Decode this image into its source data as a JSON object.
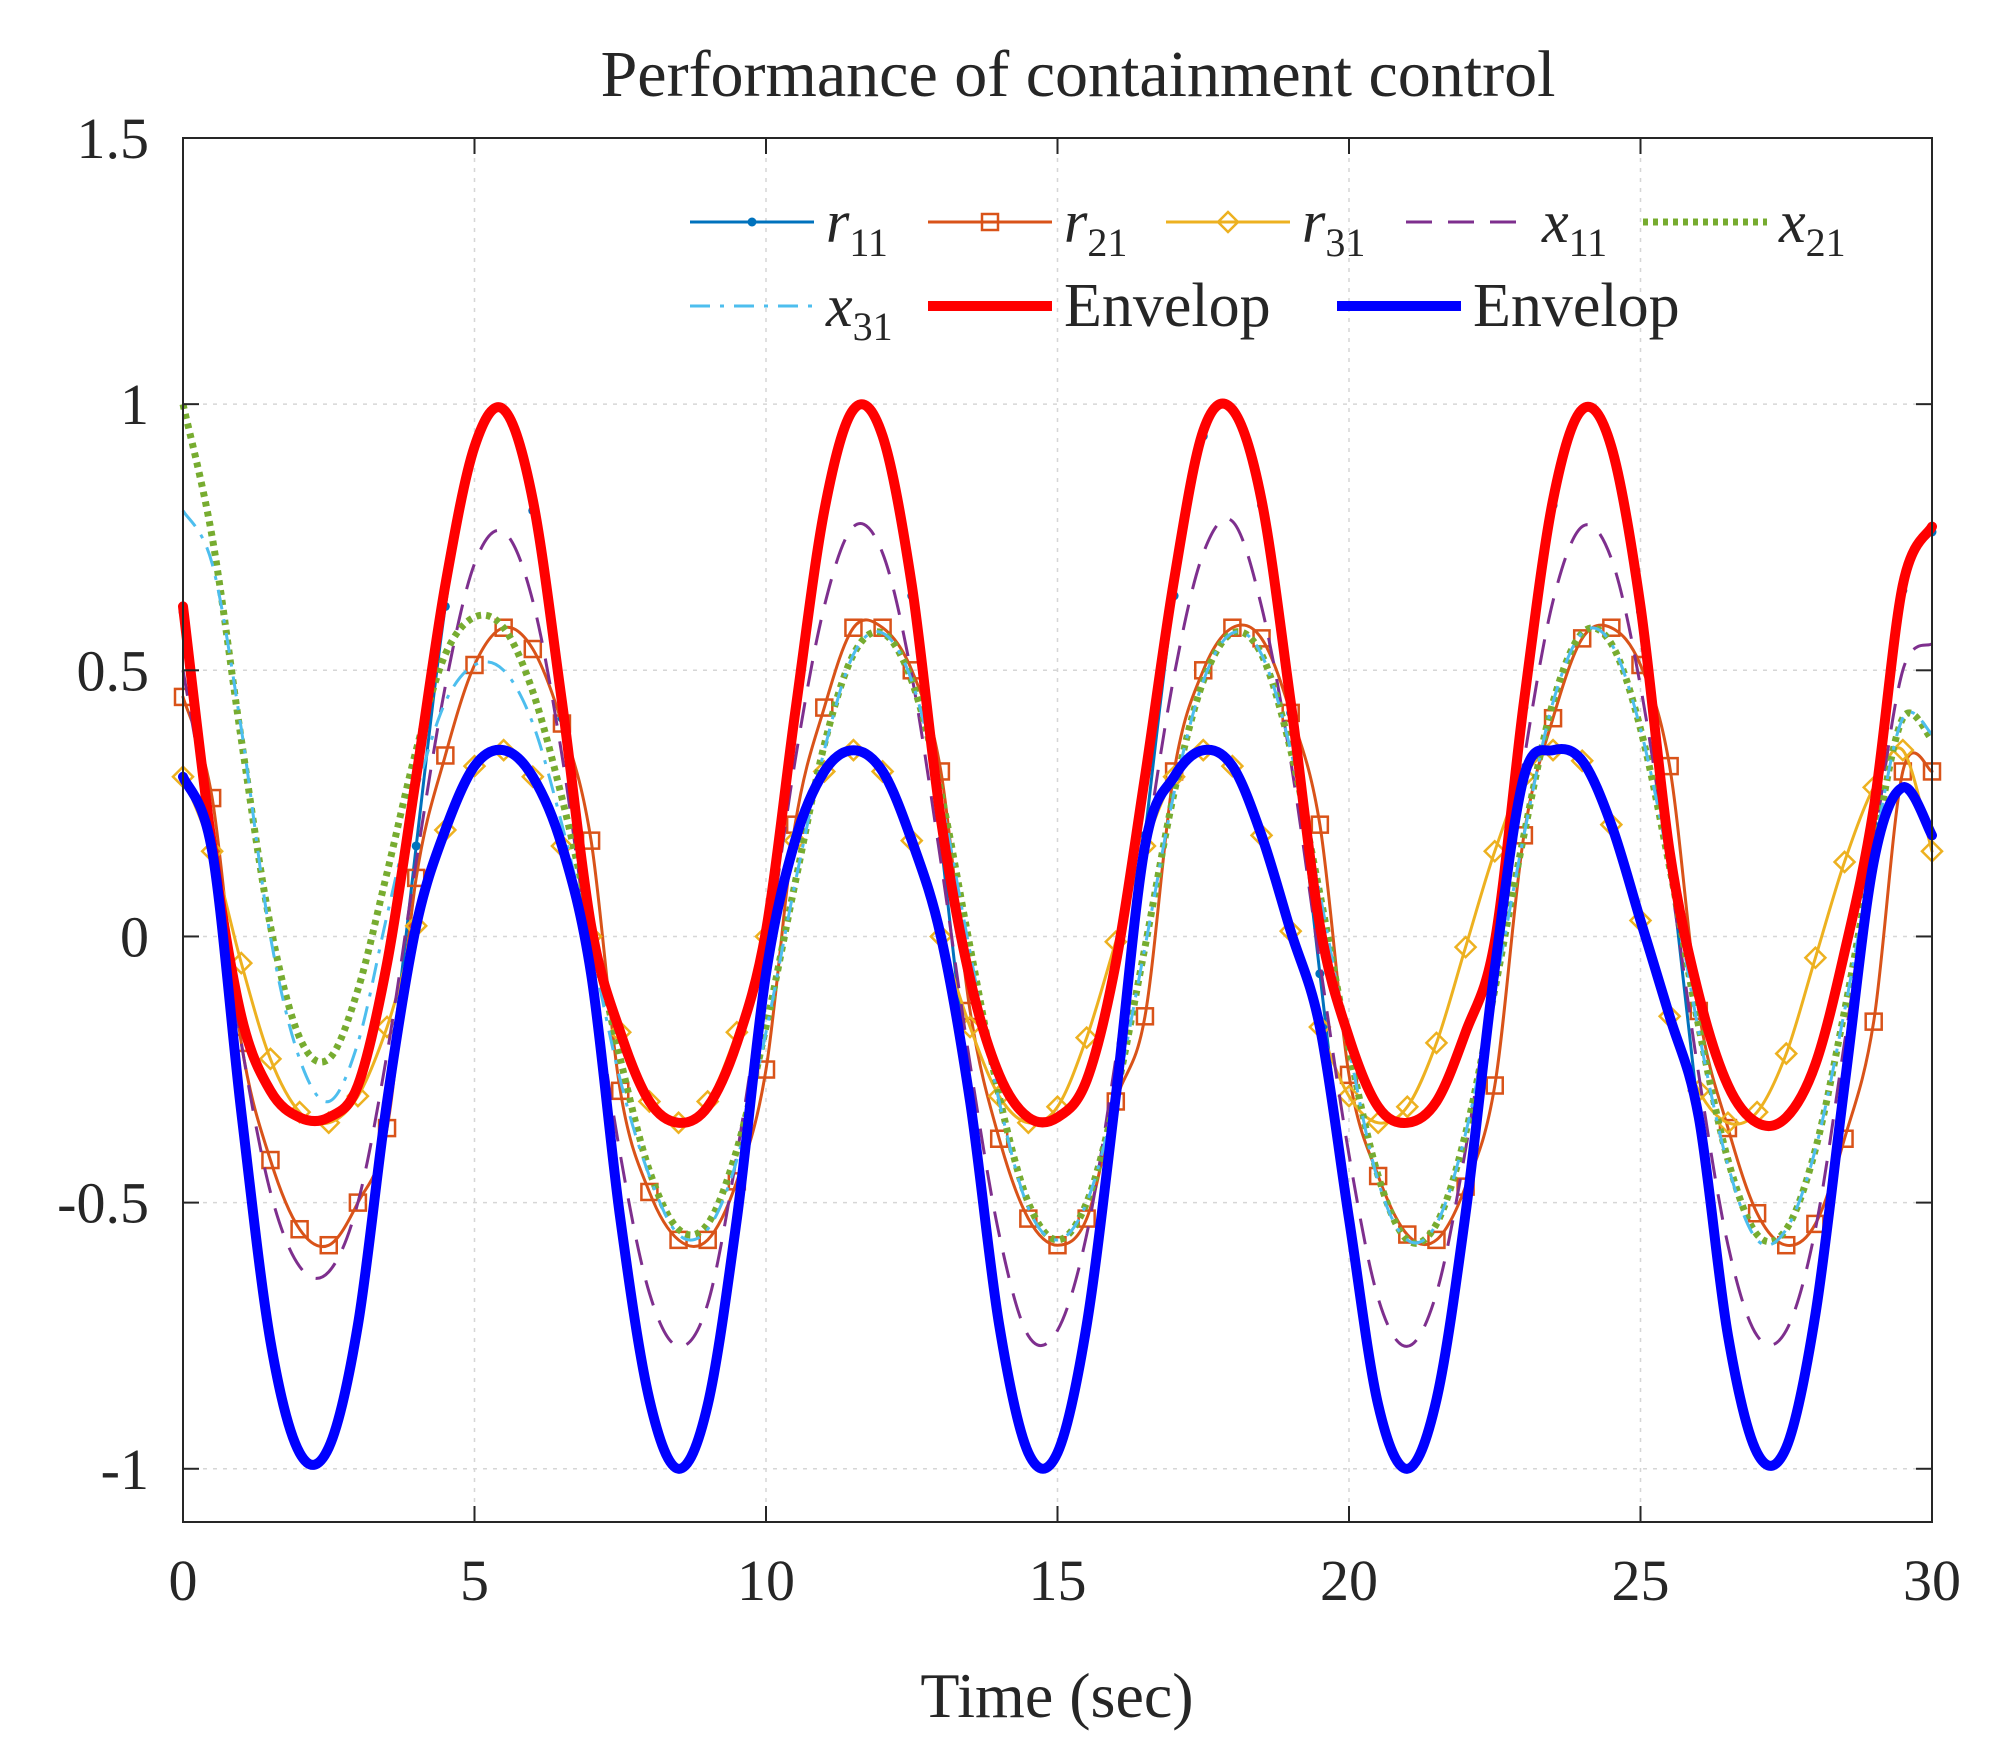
{
  "chart_data": {
    "type": "line",
    "title": "Performance of containment control",
    "xlabel": "Time (sec)",
    "ylabel": "",
    "xlim": [
      0,
      30
    ],
    "ylim": [
      -1.1,
      1.5
    ],
    "xticks": [
      0,
      5,
      10,
      15,
      20,
      25,
      30
    ],
    "xtick_labels": [
      "0",
      "5",
      "10",
      "15",
      "20",
      "25",
      "30"
    ],
    "yticks": [
      -1,
      -0.5,
      0,
      0.5,
      1,
      1.5
    ],
    "ytick_labels": [
      "-1",
      "-0.5",
      "0",
      "0.5",
      "1",
      "1.5"
    ],
    "grid": true,
    "legend_position": "top-right",
    "series": [
      {
        "name": "r_11",
        "base": "r",
        "sub": "11",
        "color": "#0072BD",
        "style": "solid",
        "width": 3,
        "marker": "dot",
        "x": [
          0,
          0.5,
          1,
          1.5,
          2,
          2.5,
          3,
          3.5,
          4,
          4.5,
          5,
          5.5,
          6,
          6.5,
          7,
          7.5,
          8,
          8.5,
          9,
          9.5,
          10,
          10.5,
          11,
          11.5,
          12,
          12.5,
          13,
          13.5,
          14,
          14.5,
          15,
          15.5,
          16,
          16.5,
          17,
          17.5,
          18,
          18.5,
          19,
          19.5,
          20,
          20.5,
          21,
          21.5,
          22,
          22.5,
          23,
          23.5,
          24,
          24.5,
          25,
          25.5,
          26,
          26.5,
          27,
          27.5,
          28,
          28.5,
          29,
          29.5,
          30
        ],
        "y": [
          0.61,
          0.17,
          -0.33,
          -0.76,
          -0.97,
          -0.96,
          -0.73,
          -0.31,
          0.17,
          0.62,
          0.92,
          0.99,
          0.8,
          0.41,
          -0.07,
          -0.53,
          -0.87,
          -1.0,
          -0.88,
          -0.53,
          -0.07,
          0.42,
          0.8,
          0.99,
          0.94,
          0.64,
          0.18,
          -0.31,
          -0.73,
          -0.97,
          -0.97,
          -0.73,
          -0.3,
          0.19,
          0.64,
          0.94,
          0.99,
          0.81,
          0.42,
          -0.07,
          -0.53,
          -0.88,
          -1.0,
          -0.87,
          -0.52,
          -0.06,
          0.43,
          0.81,
          0.99,
          0.92,
          0.61,
          0.15,
          -0.34,
          -0.75,
          -0.97,
          -0.96,
          -0.71,
          -0.28,
          0.21,
          0.65,
          0.76
        ]
      },
      {
        "name": "r_21",
        "base": "r",
        "sub": "21",
        "color": "#D95319",
        "style": "solid",
        "width": 3,
        "marker": "square",
        "x": [
          0,
          0.5,
          1,
          1.5,
          2,
          2.5,
          3,
          3.5,
          4,
          4.5,
          5,
          5.5,
          6,
          6.5,
          7,
          7.5,
          8,
          8.5,
          9,
          9.5,
          10,
          10.5,
          11,
          11.5,
          12,
          12.5,
          13,
          13.5,
          14,
          14.5,
          15,
          15.5,
          16,
          16.5,
          17,
          17.5,
          18,
          18.5,
          19,
          19.5,
          20,
          20.5,
          21,
          21.5,
          22,
          22.5,
          23,
          23.5,
          24,
          24.5,
          25,
          25.5,
          26,
          26.5,
          27,
          27.5,
          28,
          28.5,
          29,
          29.5,
          30
        ],
        "y": [
          0.45,
          0.26,
          -0.2,
          -0.42,
          -0.55,
          -0.58,
          -0.5,
          -0.36,
          0.11,
          0.34,
          0.51,
          0.58,
          0.54,
          0.4,
          0.18,
          -0.29,
          -0.48,
          -0.57,
          -0.57,
          -0.46,
          -0.25,
          0.21,
          0.43,
          0.58,
          0.58,
          0.5,
          0.31,
          -0.14,
          -0.38,
          -0.53,
          -0.58,
          -0.53,
          -0.31,
          -0.15,
          0.31,
          0.5,
          0.58,
          0.56,
          0.42,
          0.21,
          -0.26,
          -0.45,
          -0.56,
          -0.57,
          -0.47,
          -0.28,
          0.19,
          0.41,
          0.56,
          0.58,
          0.51,
          0.32,
          -0.14,
          -0.36,
          -0.52,
          -0.58,
          -0.54,
          -0.38,
          -0.16,
          0.31,
          0.31
        ]
      },
      {
        "name": "r_31",
        "base": "r",
        "sub": "31",
        "color": "#EDB120",
        "style": "solid",
        "width": 3,
        "marker": "diamond",
        "x": [
          0,
          0.5,
          1,
          1.5,
          2,
          2.5,
          3,
          3.5,
          4,
          4.5,
          5,
          5.5,
          6,
          6.5,
          7,
          7.5,
          8,
          8.5,
          9,
          9.5,
          10,
          10.5,
          11,
          11.5,
          12,
          12.5,
          13,
          13.5,
          14,
          14.5,
          15,
          15.5,
          16,
          16.5,
          17,
          17.5,
          18,
          18.5,
          19,
          19.5,
          20,
          20.5,
          21,
          21.5,
          22,
          22.5,
          23,
          23.5,
          24,
          24.5,
          25,
          25.5,
          26,
          26.5,
          27,
          27.5,
          28,
          28.5,
          29,
          29.5,
          30
        ],
        "y": [
          0.3,
          0.16,
          -0.05,
          -0.23,
          -0.33,
          -0.35,
          -0.3,
          -0.17,
          0.02,
          0.2,
          0.32,
          0.35,
          0.3,
          0.17,
          0.0,
          -0.18,
          -0.31,
          -0.35,
          -0.31,
          -0.18,
          0.0,
          0.18,
          0.31,
          0.35,
          0.31,
          0.18,
          0.0,
          -0.17,
          -0.3,
          -0.35,
          -0.32,
          -0.19,
          -0.01,
          0.17,
          0.3,
          0.35,
          0.32,
          0.19,
          0.01,
          -0.17,
          -0.3,
          -0.35,
          -0.32,
          -0.2,
          -0.02,
          0.16,
          0.3,
          0.35,
          0.33,
          0.21,
          0.03,
          -0.15,
          -0.29,
          -0.35,
          -0.33,
          -0.22,
          -0.04,
          0.14,
          0.28,
          0.35,
          0.16
        ]
      },
      {
        "name": "x_11",
        "base": "x",
        "sub": "11",
        "color": "#7E2F8E",
        "style": "dashed",
        "width": 3,
        "marker": "none",
        "x": [
          0,
          0.5,
          1,
          1.5,
          2,
          2.5,
          3,
          3.5,
          4,
          4.5,
          5,
          5.5,
          6,
          6.5,
          7,
          7.5,
          8,
          8.5,
          9,
          9.5,
          10,
          10.5,
          11,
          11.5,
          12,
          12.5,
          13,
          13.5,
          14,
          14.5,
          15,
          15.5,
          16,
          16.5,
          17,
          17.5,
          18,
          18.5,
          19,
          19.5,
          20,
          20.5,
          21,
          21.5,
          22,
          22.5,
          23,
          23.5,
          24,
          24.5,
          25,
          25.5,
          26,
          26.5,
          27,
          27.5,
          28,
          28.5,
          29,
          29.5,
          30
        ],
        "y": [
          0.5,
          0.18,
          -0.2,
          -0.48,
          -0.62,
          -0.63,
          -0.5,
          -0.22,
          0.14,
          0.47,
          0.7,
          0.76,
          0.63,
          0.34,
          -0.05,
          -0.41,
          -0.67,
          -0.77,
          -0.69,
          -0.41,
          -0.05,
          0.33,
          0.62,
          0.77,
          0.72,
          0.49,
          0.14,
          -0.24,
          -0.56,
          -0.75,
          -0.74,
          -0.56,
          -0.23,
          0.15,
          0.49,
          0.72,
          0.78,
          0.62,
          0.33,
          -0.05,
          -0.41,
          -0.68,
          -0.77,
          -0.67,
          -0.4,
          -0.05,
          0.33,
          0.63,
          0.77,
          0.71,
          0.47,
          0.12,
          -0.26,
          -0.58,
          -0.75,
          -0.74,
          -0.55,
          -0.2,
          0.17,
          0.5,
          0.55
        ]
      },
      {
        "name": "x_21",
        "base": "x",
        "sub": "21",
        "color": "#77AC30",
        "style": "dotted",
        "width": 7,
        "marker": "none",
        "x": [
          0,
          0.5,
          1,
          1.5,
          2,
          2.5,
          3,
          3.5,
          4,
          4.5,
          5,
          5.5,
          6,
          6.5,
          7,
          7.5,
          8,
          8.5,
          9,
          9.5,
          10,
          10.5,
          11,
          11.5,
          12,
          12.5,
          13,
          13.5,
          14,
          14.5,
          15,
          15.5,
          16,
          16.5,
          17,
          17.5,
          18,
          18.5,
          19,
          19.5,
          20,
          20.5,
          21,
          21.5,
          22,
          22.5,
          23,
          23.5,
          24,
          24.5,
          25,
          25.5,
          26,
          26.5,
          27,
          27.5,
          28,
          28.5,
          29,
          29.5,
          30
        ],
        "y": [
          1.0,
          0.75,
          0.37,
          0.02,
          -0.19,
          -0.23,
          -0.1,
          0.12,
          0.35,
          0.53,
          0.6,
          0.58,
          0.46,
          0.26,
          0.02,
          -0.23,
          -0.44,
          -0.55,
          -0.54,
          -0.4,
          -0.17,
          0.1,
          0.36,
          0.53,
          0.57,
          0.48,
          0.27,
          -0.02,
          -0.3,
          -0.5,
          -0.57,
          -0.5,
          -0.3,
          -0.02,
          0.27,
          0.48,
          0.57,
          0.53,
          0.35,
          0.08,
          -0.21,
          -0.45,
          -0.57,
          -0.54,
          -0.37,
          -0.1,
          0.19,
          0.44,
          0.57,
          0.55,
          0.39,
          0.13,
          -0.17,
          -0.42,
          -0.56,
          -0.55,
          -0.4,
          -0.14,
          0.16,
          0.41,
          0.37
        ]
      },
      {
        "name": "x_31",
        "base": "x",
        "sub": "31",
        "color": "#4DBEEE",
        "style": "dashdot",
        "width": 3,
        "marker": "none",
        "x": [
          0,
          0.5,
          1,
          1.5,
          2,
          2.5,
          3,
          3.5,
          4,
          4.5,
          5,
          5.5,
          6,
          6.5,
          7,
          7.5,
          8,
          8.5,
          9,
          9.5,
          10,
          10.5,
          11,
          11.5,
          12,
          12.5,
          13,
          13.5,
          14,
          14.5,
          15,
          15.5,
          16,
          16.5,
          17,
          17.5,
          18,
          18.5,
          19,
          19.5,
          20,
          20.5,
          21,
          21.5,
          22,
          22.5,
          23,
          23.5,
          24,
          24.5,
          25,
          25.5,
          26,
          26.5,
          27,
          27.5,
          28,
          28.5,
          29,
          29.5,
          30
        ],
        "y": [
          0.8,
          0.7,
          0.39,
          0.0,
          -0.23,
          -0.31,
          -0.2,
          0.04,
          0.27,
          0.44,
          0.51,
          0.5,
          0.4,
          0.21,
          -0.02,
          -0.27,
          -0.45,
          -0.56,
          -0.55,
          -0.42,
          -0.18,
          0.1,
          0.35,
          0.53,
          0.57,
          0.48,
          0.26,
          -0.03,
          -0.31,
          -0.51,
          -0.57,
          -0.5,
          -0.3,
          -0.02,
          0.27,
          0.48,
          0.57,
          0.53,
          0.35,
          0.08,
          -0.21,
          -0.46,
          -0.57,
          -0.54,
          -0.37,
          -0.1,
          0.19,
          0.44,
          0.57,
          0.55,
          0.39,
          0.13,
          -0.18,
          -0.43,
          -0.57,
          -0.55,
          -0.4,
          -0.14,
          0.16,
          0.41,
          0.38
        ]
      },
      {
        "name": "Envelop (upper)",
        "label": "Envelop",
        "color": "#FF0000",
        "style": "solid",
        "width": 10,
        "marker": "none",
        "x": [
          0,
          0.5,
          1,
          1.5,
          2,
          2.5,
          3,
          3.5,
          4,
          4.5,
          5,
          5.5,
          6,
          6.5,
          7,
          7.5,
          8,
          8.5,
          9,
          9.5,
          10,
          10.5,
          11,
          11.5,
          12,
          12.5,
          13,
          13.5,
          14,
          14.5,
          15,
          15.5,
          16,
          16.5,
          17,
          17.5,
          18,
          18.5,
          19,
          19.5,
          20,
          20.5,
          21,
          21.5,
          22,
          22.5,
          23,
          23.5,
          24,
          24.5,
          25,
          25.5,
          26,
          26.5,
          27,
          27.5,
          28,
          28.5,
          29,
          29.5,
          30
        ],
        "y": [
          0.62,
          0.17,
          -0.15,
          -0.29,
          -0.34,
          -0.34,
          -0.28,
          -0.05,
          0.3,
          0.66,
          0.92,
          0.99,
          0.82,
          0.44,
          0.02,
          -0.18,
          -0.31,
          -0.35,
          -0.32,
          -0.2,
          0.01,
          0.42,
          0.8,
          0.99,
          0.94,
          0.66,
          0.22,
          -0.08,
          -0.26,
          -0.34,
          -0.34,
          -0.27,
          -0.05,
          0.3,
          0.67,
          0.95,
          0.99,
          0.82,
          0.44,
          0.02,
          -0.19,
          -0.32,
          -0.35,
          -0.31,
          -0.18,
          -0.01,
          0.44,
          0.82,
          0.99,
          0.92,
          0.62,
          0.16,
          -0.11,
          -0.28,
          -0.35,
          -0.34,
          -0.24,
          -0.03,
          0.24,
          0.66,
          0.77
        ]
      },
      {
        "name": "Envelop (lower)",
        "label": "Envelop",
        "color": "#0000FF",
        "style": "solid",
        "width": 10,
        "marker": "none",
        "x": [
          0,
          0.5,
          1,
          1.5,
          2,
          2.5,
          3,
          3.5,
          4,
          4.5,
          5,
          5.5,
          6,
          6.5,
          7,
          7.5,
          8,
          8.5,
          9,
          9.5,
          10,
          10.5,
          11,
          11.5,
          12,
          12.5,
          13,
          13.5,
          14,
          14.5,
          15,
          15.5,
          16,
          16.5,
          17,
          17.5,
          18,
          18.5,
          19,
          19.5,
          20,
          20.5,
          21,
          21.5,
          22,
          22.5,
          23,
          23.5,
          24,
          24.5,
          25,
          25.5,
          26,
          26.5,
          27,
          27.5,
          28,
          28.5,
          29,
          29.5,
          30
        ],
        "y": [
          0.3,
          0.16,
          -0.33,
          -0.76,
          -0.97,
          -0.96,
          -0.73,
          -0.31,
          0.02,
          0.2,
          0.32,
          0.35,
          0.3,
          0.17,
          -0.07,
          -0.53,
          -0.87,
          -1.0,
          -0.88,
          -0.53,
          -0.07,
          0.18,
          0.31,
          0.35,
          0.31,
          0.18,
          0.0,
          -0.31,
          -0.73,
          -0.97,
          -0.97,
          -0.73,
          -0.3,
          0.17,
          0.3,
          0.35,
          0.32,
          0.19,
          0.01,
          -0.17,
          -0.53,
          -0.88,
          -1.0,
          -0.87,
          -0.52,
          -0.06,
          0.3,
          0.35,
          0.33,
          0.21,
          0.03,
          -0.15,
          -0.34,
          -0.75,
          -0.97,
          -0.96,
          -0.71,
          -0.28,
          0.14,
          0.28,
          0.19
        ]
      }
    ]
  }
}
